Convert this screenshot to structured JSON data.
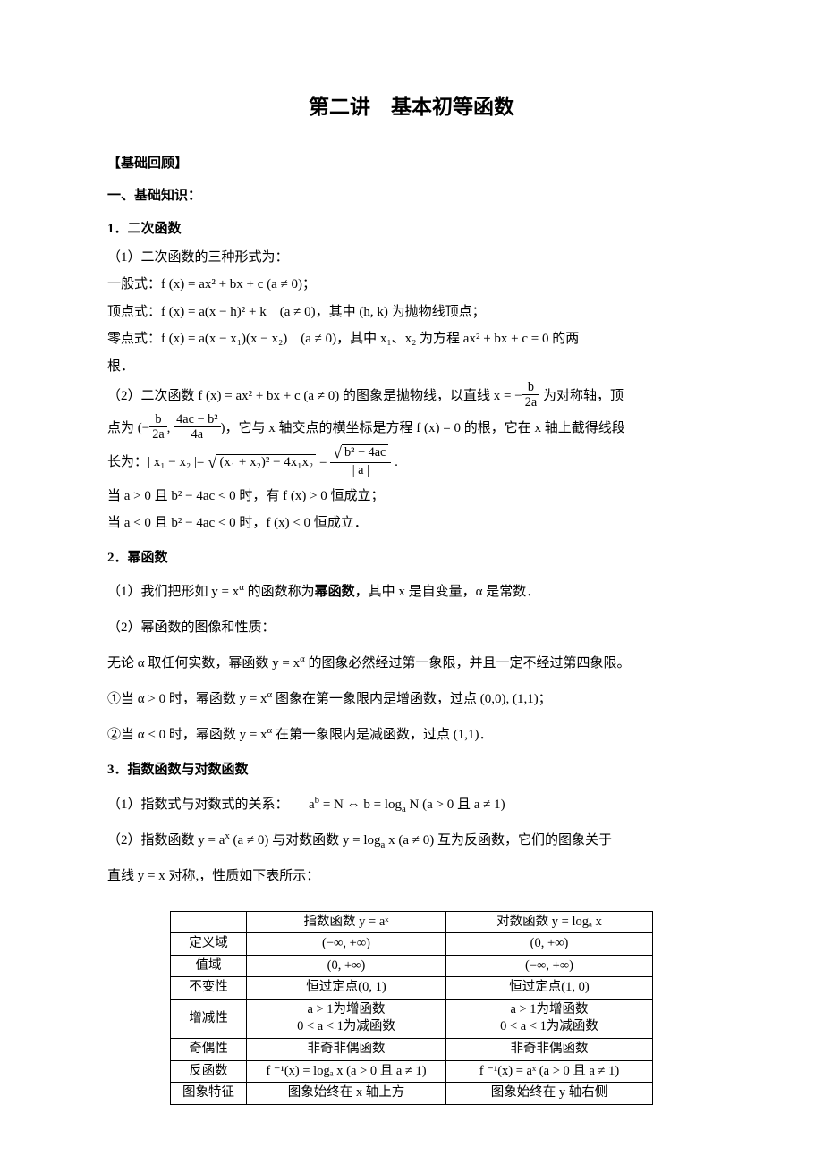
{
  "title": "第二讲　基本初等函数",
  "review_heading": "【基础回顾】",
  "basic_heading": "一、基础知识：",
  "sec1_title": "1．二次函数",
  "sec1_p1": "（1）二次函数的三种形式为：",
  "sec1_general": "一般式：f (x) = ax² + bx + c (a ≠ 0)；",
  "sec1_vertex": "顶点式：f (x) = a(x − h)² + k　(a ≠ 0)，其中 (h,  k) 为抛物线顶点；",
  "sec1_zero_a": "零点式：f (x) = a(x − x₁)(x − x₂)　(a ≠ 0)，其中 x₁、x₂ 为方程 ax² + bx + c = 0 的两",
  "sec1_zero_b": "根．",
  "sec1_p2_a": "（2）二次函数 f (x) = ax² + bx + c (a ≠ 0) 的图象是抛物线，以直线 x = −",
  "sec1_p2_frac_num": "b",
  "sec1_p2_frac_den": "2a",
  "sec1_p2_b": " 为对称轴，顶",
  "sec1_p3_a": "点为 (−",
  "sec1_p3_f1_num": "b",
  "sec1_p3_f1_den": "2a",
  "sec1_p3_mid": ", ",
  "sec1_p3_f2_num": "4ac − b²",
  "sec1_p3_f2_den": "4a",
  "sec1_p3_b": ")，它与 x 轴交点的横坐标是方程 f (x) = 0 的根，它在 x 轴上截得线段",
  "sec1_p4_a": "长为：| x₁ − x₂ |= ",
  "sec1_p4_sqrt": "(x₁ + x₂)² − 4x₁x₂",
  "sec1_p4_eq": " = ",
  "sec1_p4_f_num_sqrt": "b² − 4ac",
  "sec1_p4_f_den": "| a |",
  "sec1_p4_end": " .",
  "sec1_p5": "当 a > 0 且 b² − 4ac < 0 时，有 f (x) > 0 恒成立；",
  "sec1_p6": "当 a < 0 且 b² − 4ac < 0 时，f (x) < 0 恒成立．",
  "sec2_title": "2．幂函数",
  "sec2_p1_a": "（1）我们把形如 y = x",
  "sec2_p1_sup": "α",
  "sec2_p1_b": " 的函数称为",
  "sec2_p1_bold": "幂函数",
  "sec2_p1_c": "，其中 x 是自变量，α 是常数．",
  "sec2_p2": "（2）幂函数的图像和性质：",
  "sec2_p3_a": "无论 α 取任何实数，幂函数 y = x",
  "sec2_p3_sup": "α",
  "sec2_p3_b": " 的图象必然经过第一象限，并且一定不经过第四象限。",
  "sec2_p4_a": "①当 α > 0 时，幂函数 y = x",
  "sec2_p4_sup": "α",
  "sec2_p4_b": " 图象在第一象限内是增函数，过点 (0,0), (1,1)；",
  "sec2_p5_a": "②当 α < 0 时，幂函数 y = x",
  "sec2_p5_sup": "α",
  "sec2_p5_b": " 在第一象限内是减函数，过点 (1,1)．",
  "sec3_title": "3．指数函数与对数函数",
  "sec3_p1_a": "（1）指数式与对数式的关系：　　a",
  "sec3_p1_sup": "b",
  "sec3_p1_b": " = N ⇔ b = log",
  "sec3_p1_sub": "a",
  "sec3_p1_c": " N (a > 0 且 a ≠ 1)",
  "sec3_p2_a": "（2）指数函数 y = a",
  "sec3_p2_sup": "x",
  "sec3_p2_b": " (a ≠ 0) 与对数函数 y = log",
  "sec3_p2_sub": "a",
  "sec3_p2_c": " x (a ≠ 0) 互为反函数，它们的图象关于",
  "sec3_p3": "直线 y = x 对称,，性质如下表所示：",
  "table": {
    "head_blank": "",
    "head_exp": "指数函数 y = aˣ",
    "head_log": "对数函数 y = logₐ x",
    "rows": [
      {
        "label": "定义域",
        "exp": "(−∞,  +∞)",
        "log": "(0,  +∞)"
      },
      {
        "label": "值域",
        "exp": "(0,  +∞)",
        "log": "(−∞,  +∞)"
      },
      {
        "label": "不变性",
        "exp": "恒过定点(0, 1)",
        "log": "恒过定点(1, 0)"
      }
    ],
    "mono_label": "增减性",
    "mono_exp_1": "a > 1为增函数",
    "mono_exp_2": "0 < a < 1为减函数",
    "mono_log_1": "a > 1为增函数",
    "mono_log_2": "0 < a < 1为减函数",
    "parity": {
      "label": "奇偶性",
      "exp": "非奇非偶函数",
      "log": "非奇非偶函数"
    },
    "inverse": {
      "label": "反函数",
      "exp": "f ⁻¹(x) = logₐ x (a > 0 且 a ≠ 1)",
      "log": "f ⁻¹(x) = aˣ (a > 0 且 a ≠ 1)"
    },
    "graph": {
      "label": "图象特征",
      "exp": "图象始终在 x 轴上方",
      "log": "图象始终在 y 轴右侧"
    }
  }
}
